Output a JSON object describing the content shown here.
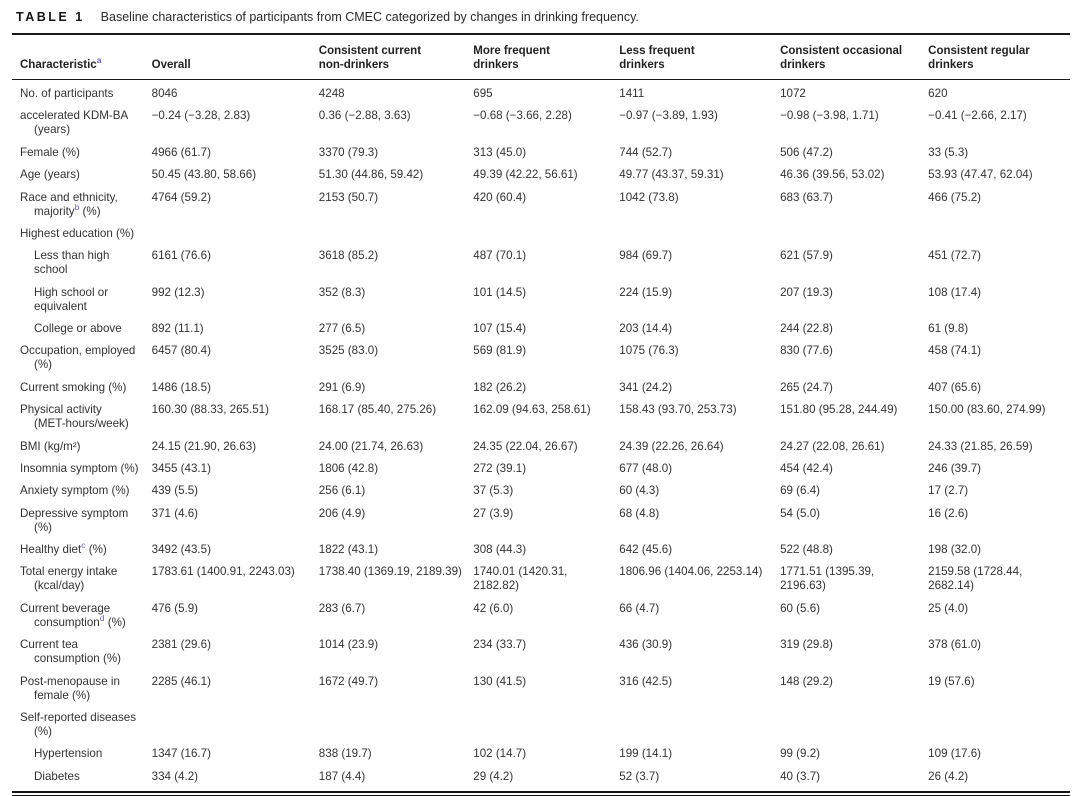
{
  "table": {
    "label": "TABLE 1",
    "caption": "Baseline characteristics of participants from CMEC categorized by changes in drinking frequency.",
    "footnote_marker_color": "#6a5fd0",
    "columns": [
      "Characteristic^a",
      "Overall",
      "Consistent current\nnon-drinkers",
      "More frequent\ndrinkers",
      "Less frequent\ndrinkers",
      "Consistent occasional\ndrinkers",
      "Consistent regular\ndrinkers"
    ],
    "rows": [
      {
        "type": "data",
        "label": "No. of participants",
        "values": [
          "8046",
          "4248",
          "695",
          "1411",
          "1072",
          "620"
        ]
      },
      {
        "type": "data",
        "label": "accelerated KDM-BA (years)",
        "values": [
          "−0.24 (−3.28, 2.83)",
          "0.36 (−2.88, 3.63)",
          "−0.68 (−3.66, 2.28)",
          "−0.97 (−3.89, 1.93)",
          "−0.98 (−3.98, 1.71)",
          "−0.41 (−2.66, 2.17)"
        ]
      },
      {
        "type": "data",
        "label": "Female (%)",
        "values": [
          "4966 (61.7)",
          "3370 (79.3)",
          "313 (45.0)",
          "744 (52.7)",
          "506 (47.2)",
          "33 (5.3)"
        ]
      },
      {
        "type": "data",
        "label": "Age (years)",
        "values": [
          "50.45 (43.80, 58.66)",
          "51.30 (44.86, 59.42)",
          "49.39 (42.22, 56.61)",
          "49.77 (43.37, 59.31)",
          "46.36 (39.56, 53.02)",
          "53.93 (47.47, 62.04)"
        ]
      },
      {
        "type": "data",
        "label": "Race and ethnicity,\nmajority^b (%)",
        "values": [
          "4764 (59.2)",
          "2153 (50.7)",
          "420 (60.4)",
          "1042 (73.8)",
          "683 (63.7)",
          "466 (75.2)"
        ]
      },
      {
        "type": "section",
        "label": "Highest education (%)",
        "values": [
          "",
          "",
          "",
          "",
          "",
          ""
        ]
      },
      {
        "type": "sub",
        "label": "Less than high school",
        "values": [
          "6161 (76.6)",
          "3618 (85.2)",
          "487 (70.1)",
          "984 (69.7)",
          "621 (57.9)",
          "451 (72.7)"
        ]
      },
      {
        "type": "sub",
        "label": "High school or equivalent",
        "values": [
          "992 (12.3)",
          "352 (8.3)",
          "101 (14.5)",
          "224 (15.9)",
          "207 (19.3)",
          "108 (17.4)"
        ]
      },
      {
        "type": "sub",
        "label": "College or above",
        "values": [
          "892 (11.1)",
          "277 (6.5)",
          "107 (15.4)",
          "203 (14.4)",
          "244 (22.8)",
          "61 (9.8)"
        ]
      },
      {
        "type": "data",
        "label": "Occupation, employed (%)",
        "values": [
          "6457 (80.4)",
          "3525 (83.0)",
          "569 (81.9)",
          "1075 (76.3)",
          "830 (77.6)",
          "458 (74.1)"
        ]
      },
      {
        "type": "data",
        "label": "Current smoking (%)",
        "values": [
          "1486 (18.5)",
          "291 (6.9)",
          "182 (26.2)",
          "341 (24.2)",
          "265 (24.7)",
          "407 (65.6)"
        ]
      },
      {
        "type": "data",
        "label": "Physical activity\n(MET-hours/week)",
        "values": [
          "160.30 (88.33, 265.51)",
          "168.17 (85.40, 275.26)",
          "162.09 (94.63, 258.61)",
          "158.43 (93.70, 253.73)",
          "151.80 (95.28, 244.49)",
          "150.00 (83.60, 274.99)"
        ]
      },
      {
        "type": "data",
        "label": "BMI (kg/m²)",
        "values": [
          "24.15 (21.90, 26.63)",
          "24.00 (21.74, 26.63)",
          "24.35 (22.04, 26.67)",
          "24.39 (22.26, 26.64)",
          "24.27 (22.08, 26.61)",
          "24.33 (21.85, 26.59)"
        ]
      },
      {
        "type": "data",
        "label": "Insomnia symptom (%)",
        "values": [
          "3455 (43.1)",
          "1806 (42.8)",
          "272 (39.1)",
          "677 (48.0)",
          "454 (42.4)",
          "246 (39.7)"
        ]
      },
      {
        "type": "data",
        "label": "Anxiety symptom (%)",
        "values": [
          "439 (5.5)",
          "256 (6.1)",
          "37 (5.3)",
          "60 (4.3)",
          "69 (6.4)",
          "17 (2.7)"
        ]
      },
      {
        "type": "data",
        "label": "Depressive symptom (%)",
        "values": [
          "371 (4.6)",
          "206 (4.9)",
          "27 (3.9)",
          "68 (4.8)",
          "54 (5.0)",
          "16 (2.6)"
        ]
      },
      {
        "type": "data",
        "label": "Healthy diet^c (%)",
        "values": [
          "3492 (43.5)",
          "1822 (43.1)",
          "308 (44.3)",
          "642 (45.6)",
          "522 (48.8)",
          "198 (32.0)"
        ]
      },
      {
        "type": "data",
        "label": "Total energy intake\n(kcal/day)",
        "values": [
          "1783.61 (1400.91, 2243.03)",
          "1738.40 (1369.19, 2189.39)",
          "1740.01 (1420.31, 2182.82)",
          "1806.96 (1404.06, 2253.14)",
          "1771.51 (1395.39, 2196.63)",
          "2159.58 (1728.44, 2682.14)"
        ]
      },
      {
        "type": "data",
        "label": "Current beverage\nconsumption^d (%)",
        "values": [
          "476 (5.9)",
          "283 (6.7)",
          "42 (6.0)",
          "66 (4.7)",
          "60 (5.6)",
          "25 (4.0)"
        ]
      },
      {
        "type": "data",
        "label": "Current tea consumption (%)",
        "values": [
          "2381 (29.6)",
          "1014 (23.9)",
          "234 (33.7)",
          "436 (30.9)",
          "319 (29.8)",
          "378 (61.0)"
        ]
      },
      {
        "type": "data",
        "label": "Post-menopause in\nfemale (%)",
        "values": [
          "2285 (46.1)",
          "1672 (49.7)",
          "130 (41.5)",
          "316 (42.5)",
          "148 (29.2)",
          "19 (57.6)"
        ]
      },
      {
        "type": "section",
        "label": "Self-reported diseases (%)",
        "values": [
          "",
          "",
          "",
          "",
          "",
          ""
        ]
      },
      {
        "type": "sub",
        "label": "Hypertension",
        "values": [
          "1347 (16.7)",
          "838 (19.7)",
          "102 (14.7)",
          "199 (14.1)",
          "99 (9.2)",
          "109 (17.6)"
        ]
      },
      {
        "type": "sub",
        "label": "Diabetes",
        "values": [
          "334 (4.2)",
          "187 (4.4)",
          "29 (4.2)",
          "52 (3.7)",
          "40 (3.7)",
          "26 (4.2)"
        ]
      }
    ]
  }
}
